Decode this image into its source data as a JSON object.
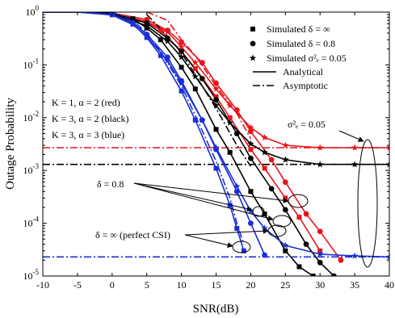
{
  "chart_data": {
    "type": "line",
    "xlabel": "SNR(dB)",
    "ylabel": "Outage Probability",
    "xlim": [
      -10,
      40
    ],
    "ylim": [
      1e-05,
      1
    ],
    "yscale": "log",
    "x_ticks": [
      "-10",
      "-5",
      "0",
      "5",
      "10",
      "15",
      "20",
      "25",
      "30",
      "35",
      "40"
    ],
    "y_ticks": [
      {
        "base": "10",
        "exp": "0",
        "value": 1
      },
      {
        "base": "10",
        "exp": "-1",
        "value": 0.1
      },
      {
        "base": "10",
        "exp": "-2",
        "value": 0.01
      },
      {
        "base": "10",
        "exp": "-3",
        "value": 0.001
      },
      {
        "base": "10",
        "exp": "-4",
        "value": 0.0001
      },
      {
        "base": "10",
        "exp": "-5",
        "value": 1e-05
      }
    ],
    "grid": false,
    "legend_position": "top-right",
    "legend": [
      {
        "marker": "square",
        "text": "Simulated  δ = ∞"
      },
      {
        "marker": "circle",
        "text": "Simulated  δ = 0.8"
      },
      {
        "marker": "star",
        "text": "Simulated  σ²ₑ = 0.05"
      },
      {
        "line": "solid",
        "text": "Analytical"
      },
      {
        "line": "dashdot",
        "text": "Asymptotic"
      }
    ],
    "annotations": {
      "k1": "K = 1, α = 2 (red)",
      "k3a2": "K = 3, α = 2 (black)",
      "k3a3": "K = 3, α = 3 (blue)",
      "delta08": "δ = 0.8",
      "delta_inf": "δ = ∞ (perfect CSI)",
      "sigma": "σ²ₑ = 0.05"
    },
    "colors": {
      "red": "#e8141c",
      "black": "#000000",
      "blue": "#1a2fd6"
    },
    "series": [
      {
        "name": "K=1, α=2, δ=∞",
        "color": "red",
        "style": "solid",
        "marker": "square",
        "x": [
          -10,
          -5,
          0,
          5,
          7,
          10,
          12,
          15,
          17,
          20,
          22,
          25,
          27,
          30
        ],
        "y": [
          1,
          1,
          0.95,
          0.65,
          0.45,
          0.18,
          0.085,
          0.025,
          0.01,
          0.0025,
          0.0011,
          0.0003,
          0.00013,
          3e-05
        ]
      },
      {
        "name": "K=1, α=2, δ=0.8",
        "color": "red",
        "style": "solid",
        "marker": "circle",
        "x": [
          -10,
          -5,
          0,
          5,
          8,
          10,
          13,
          15,
          18,
          20,
          23,
          25,
          28,
          30,
          33
        ],
        "y": [
          1,
          1,
          0.96,
          0.72,
          0.45,
          0.27,
          0.11,
          0.045,
          0.014,
          0.0055,
          0.0016,
          0.0006,
          0.00015,
          7e-05,
          2e-05
        ]
      },
      {
        "name": "K=1, α=2, σ²ₑ=0.05",
        "color": "red",
        "style": "solid",
        "marker": "star",
        "x": [
          -10,
          -5,
          0,
          5,
          8,
          10,
          12,
          15,
          17,
          20,
          22,
          25,
          30,
          35,
          40
        ],
        "y": [
          1,
          1,
          0.95,
          0.66,
          0.42,
          0.22,
          0.11,
          0.035,
          0.017,
          0.0065,
          0.0042,
          0.003,
          0.0027,
          0.0027,
          0.0027
        ]
      },
      {
        "name": "K=1, α=2 asymptotic δ=∞",
        "color": "red",
        "style": "dashdot",
        "x": [
          5,
          8,
          10,
          12,
          15,
          18,
          20
        ],
        "y": [
          1,
          0.7,
          0.3,
          0.15,
          0.04,
          0.012,
          0.004
        ]
      },
      {
        "name": "K=1, α=2 asymptotic σ²ₑ=0.05",
        "color": "red",
        "style": "dashdot",
        "x": [
          -10,
          40
        ],
        "y": [
          0.0027,
          0.0027
        ]
      },
      {
        "name": "K=3, α=2, δ=∞",
        "color": "black",
        "style": "solid",
        "marker": "square",
        "x": [
          -10,
          -5,
          0,
          3,
          5,
          7,
          10,
          12,
          15,
          17,
          20,
          22,
          25,
          27,
          29
        ],
        "y": [
          1,
          1,
          0.93,
          0.75,
          0.5,
          0.3,
          0.09,
          0.035,
          0.006,
          0.0022,
          0.0004,
          0.00015,
          3e-05,
          1.5e-05,
          1e-05
        ]
      },
      {
        "name": "K=3, α=2, δ=0.8",
        "color": "black",
        "style": "solid",
        "marker": "circle",
        "x": [
          -10,
          -5,
          0,
          5,
          8,
          10,
          13,
          15,
          18,
          20,
          23,
          25,
          28,
          30,
          32
        ],
        "y": [
          1,
          1,
          0.95,
          0.62,
          0.32,
          0.18,
          0.055,
          0.022,
          0.005,
          0.0017,
          0.00045,
          0.00018,
          4e-05,
          1.8e-05,
          1e-05
        ]
      },
      {
        "name": "K=3, α=2, σ²ₑ=0.05",
        "color": "black",
        "style": "solid",
        "marker": "star",
        "x": [
          -10,
          -5,
          0,
          5,
          8,
          10,
          12,
          15,
          17,
          20,
          22,
          25,
          30,
          35,
          40
        ],
        "y": [
          1,
          1,
          0.93,
          0.55,
          0.28,
          0.14,
          0.06,
          0.017,
          0.008,
          0.0032,
          0.0022,
          0.0016,
          0.0013,
          0.0013,
          0.0013
        ]
      },
      {
        "name": "K=3, α=2 asymptotic δ=∞",
        "color": "black",
        "style": "dashdot",
        "x": [
          5,
          8,
          10,
          13,
          15,
          18,
          20
        ],
        "y": [
          0.9,
          0.35,
          0.17,
          0.04,
          0.015,
          0.003,
          0.0012
        ]
      },
      {
        "name": "K=3, α=2 asymptotic σ²ₑ=0.05",
        "color": "black",
        "style": "dashdot",
        "x": [
          -10,
          40
        ],
        "y": [
          0.0013,
          0.0013
        ]
      },
      {
        "name": "K=3, α=3, δ=∞",
        "color": "blue",
        "style": "solid",
        "marker": "square",
        "x": [
          -10,
          -5,
          0,
          3,
          5,
          7,
          10,
          12,
          15,
          17,
          18,
          19
        ],
        "y": [
          1,
          1,
          0.9,
          0.6,
          0.33,
          0.15,
          0.032,
          0.009,
          0.0011,
          0.00022,
          8e-05,
          3e-05
        ]
      },
      {
        "name": "K=3, α=3, δ=0.8",
        "color": "blue",
        "style": "solid",
        "marker": "circle",
        "x": [
          -10,
          -5,
          0,
          3,
          5,
          8,
          10,
          13,
          15,
          18,
          20,
          22
        ],
        "y": [
          1,
          1,
          0.9,
          0.63,
          0.38,
          0.14,
          0.05,
          0.009,
          0.0025,
          0.0004,
          0.0001,
          2.5e-05
        ]
      },
      {
        "name": "K=3, α=3, σ²ₑ=0.05",
        "color": "blue",
        "style": "solid",
        "marker": "star",
        "x": [
          -10,
          -5,
          0,
          3,
          5,
          8,
          10,
          13,
          15,
          18,
          20,
          22,
          25,
          30,
          35,
          40
        ],
        "y": [
          1,
          1,
          0.88,
          0.58,
          0.35,
          0.12,
          0.045,
          0.009,
          0.0027,
          0.0005,
          0.00017,
          8e-05,
          3.8e-05,
          2.6e-05,
          2.4e-05,
          2.3e-05
        ]
      },
      {
        "name": "K=3, α=3 asymptotic δ=∞",
        "color": "blue",
        "style": "dashdot",
        "x": [
          0,
          3,
          5,
          7,
          10,
          12,
          15,
          17,
          18,
          19
        ],
        "y": [
          1,
          0.7,
          0.4,
          0.18,
          0.04,
          0.011,
          0.0015,
          0.0003,
          0.0001,
          4e-05
        ]
      },
      {
        "name": "K=3, α=3 asymptotic σ²ₑ=0.05",
        "color": "blue",
        "style": "dashdot",
        "x": [
          -10,
          40
        ],
        "y": [
          2.3e-05,
          2.3e-05
        ]
      }
    ]
  }
}
